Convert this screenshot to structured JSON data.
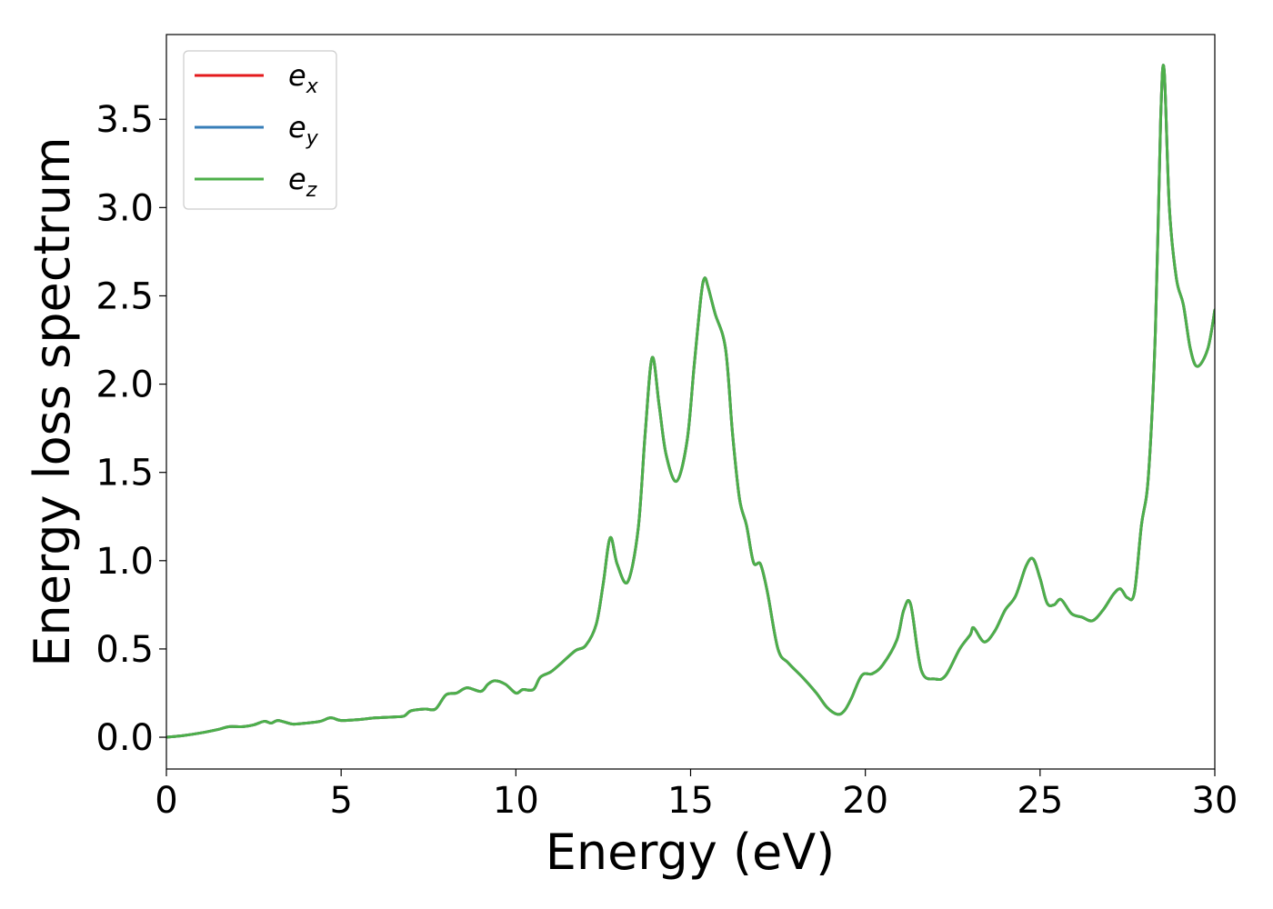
{
  "chart_data": {
    "type": "line",
    "title": "",
    "xlabel": "Energy (eV)",
    "ylabel": "Energy loss spectrum",
    "xlim": [
      0,
      30
    ],
    "ylim": [
      -0.18,
      3.98
    ],
    "xticks": [
      0,
      5,
      10,
      15,
      20,
      25,
      30
    ],
    "xtick_labels": [
      "0",
      "5",
      "10",
      "15",
      "20",
      "25",
      "30"
    ],
    "yticks": [
      0.0,
      0.5,
      1.0,
      1.5,
      2.0,
      2.5,
      3.0,
      3.5
    ],
    "ytick_labels": [
      "0.0",
      "0.5",
      "1.0",
      "1.5",
      "2.0",
      "2.5",
      "3.0",
      "3.5"
    ],
    "grid": false,
    "legend_position": "top-left",
    "x": [
      0.0,
      0.5,
      1.0,
      1.5,
      1.8,
      2.2,
      2.5,
      2.8,
      3.0,
      3.2,
      3.6,
      4.0,
      4.4,
      4.7,
      5.0,
      5.5,
      6.0,
      6.5,
      6.8,
      7.0,
      7.4,
      7.7,
      8.0,
      8.3,
      8.6,
      9.0,
      9.2,
      9.4,
      9.7,
      10.0,
      10.2,
      10.5,
      10.7,
      11.0,
      11.3,
      11.7,
      12.0,
      12.3,
      12.5,
      12.7,
      12.9,
      13.2,
      13.5,
      13.7,
      13.9,
      14.1,
      14.3,
      14.6,
      14.9,
      15.1,
      15.3,
      15.4,
      15.5,
      15.7,
      16.0,
      16.2,
      16.4,
      16.6,
      16.8,
      17.0,
      17.2,
      17.5,
      17.8,
      18.2,
      18.6,
      18.9,
      19.2,
      19.4,
      19.6,
      19.9,
      20.2,
      20.5,
      20.9,
      21.1,
      21.3,
      21.6,
      22.0,
      22.3,
      22.7,
      23.0,
      23.1,
      23.4,
      23.7,
      24.0,
      24.3,
      24.6,
      24.8,
      25.0,
      25.2,
      25.4,
      25.6,
      25.9,
      26.2,
      26.5,
      26.8,
      27.1,
      27.3,
      27.5,
      27.7,
      27.9,
      28.1,
      28.3,
      28.45,
      28.55,
      28.7,
      28.9,
      29.1,
      29.3,
      29.5,
      29.8,
      30.0
    ],
    "series": [
      {
        "name": "e_x",
        "label_base": "e",
        "label_sub": "x",
        "color": "#e41a1c",
        "values": [
          0.0,
          0.01,
          0.025,
          0.045,
          0.06,
          0.06,
          0.07,
          0.09,
          0.08,
          0.095,
          0.075,
          0.08,
          0.09,
          0.11,
          0.095,
          0.1,
          0.11,
          0.115,
          0.12,
          0.15,
          0.16,
          0.16,
          0.24,
          0.25,
          0.28,
          0.26,
          0.3,
          0.32,
          0.3,
          0.25,
          0.27,
          0.27,
          0.34,
          0.37,
          0.42,
          0.49,
          0.52,
          0.64,
          0.87,
          1.13,
          0.98,
          0.88,
          1.18,
          1.72,
          2.15,
          1.88,
          1.6,
          1.45,
          1.68,
          2.1,
          2.5,
          2.6,
          2.55,
          2.4,
          2.2,
          1.72,
          1.35,
          1.2,
          0.99,
          0.98,
          0.82,
          0.5,
          0.42,
          0.34,
          0.25,
          0.17,
          0.13,
          0.15,
          0.22,
          0.35,
          0.36,
          0.41,
          0.55,
          0.72,
          0.75,
          0.38,
          0.33,
          0.35,
          0.5,
          0.58,
          0.62,
          0.54,
          0.6,
          0.72,
          0.8,
          0.97,
          1.01,
          0.9,
          0.76,
          0.75,
          0.78,
          0.7,
          0.68,
          0.66,
          0.72,
          0.81,
          0.84,
          0.79,
          0.82,
          1.2,
          1.48,
          2.3,
          3.5,
          3.78,
          3.0,
          2.6,
          2.45,
          2.2,
          2.1,
          2.2,
          2.42
        ]
      },
      {
        "name": "e_y",
        "label_base": "e",
        "label_sub": "y",
        "color": "#377eb8",
        "values": [
          0.0,
          0.01,
          0.025,
          0.045,
          0.06,
          0.06,
          0.07,
          0.09,
          0.08,
          0.095,
          0.075,
          0.08,
          0.09,
          0.11,
          0.095,
          0.1,
          0.11,
          0.115,
          0.12,
          0.15,
          0.16,
          0.16,
          0.24,
          0.25,
          0.28,
          0.26,
          0.3,
          0.32,
          0.3,
          0.25,
          0.27,
          0.27,
          0.34,
          0.37,
          0.42,
          0.49,
          0.52,
          0.64,
          0.87,
          1.13,
          0.98,
          0.88,
          1.18,
          1.72,
          2.15,
          1.88,
          1.6,
          1.45,
          1.68,
          2.1,
          2.5,
          2.6,
          2.55,
          2.4,
          2.2,
          1.72,
          1.35,
          1.2,
          0.99,
          0.98,
          0.82,
          0.5,
          0.42,
          0.34,
          0.25,
          0.17,
          0.13,
          0.15,
          0.22,
          0.35,
          0.36,
          0.41,
          0.55,
          0.72,
          0.75,
          0.38,
          0.33,
          0.35,
          0.5,
          0.58,
          0.62,
          0.54,
          0.6,
          0.72,
          0.8,
          0.97,
          1.01,
          0.9,
          0.76,
          0.75,
          0.78,
          0.7,
          0.68,
          0.66,
          0.72,
          0.81,
          0.84,
          0.79,
          0.82,
          1.2,
          1.48,
          2.3,
          3.5,
          3.78,
          3.0,
          2.6,
          2.45,
          2.2,
          2.1,
          2.2,
          2.42
        ]
      },
      {
        "name": "e_z",
        "label_base": "e",
        "label_sub": "z",
        "color": "#4daf4a",
        "values": [
          0.0,
          0.01,
          0.025,
          0.045,
          0.06,
          0.06,
          0.07,
          0.09,
          0.08,
          0.095,
          0.075,
          0.08,
          0.09,
          0.11,
          0.095,
          0.1,
          0.11,
          0.115,
          0.12,
          0.15,
          0.16,
          0.16,
          0.24,
          0.25,
          0.28,
          0.26,
          0.3,
          0.32,
          0.3,
          0.25,
          0.27,
          0.27,
          0.34,
          0.37,
          0.42,
          0.49,
          0.52,
          0.64,
          0.87,
          1.13,
          0.98,
          0.88,
          1.18,
          1.72,
          2.15,
          1.88,
          1.6,
          1.45,
          1.68,
          2.1,
          2.5,
          2.6,
          2.55,
          2.4,
          2.2,
          1.72,
          1.35,
          1.2,
          0.99,
          0.98,
          0.82,
          0.5,
          0.42,
          0.34,
          0.25,
          0.17,
          0.13,
          0.15,
          0.22,
          0.35,
          0.36,
          0.41,
          0.55,
          0.72,
          0.75,
          0.38,
          0.33,
          0.35,
          0.5,
          0.58,
          0.62,
          0.54,
          0.6,
          0.72,
          0.8,
          0.97,
          1.01,
          0.9,
          0.76,
          0.75,
          0.78,
          0.7,
          0.68,
          0.66,
          0.72,
          0.81,
          0.84,
          0.79,
          0.82,
          1.2,
          1.48,
          2.3,
          3.5,
          3.78,
          3.0,
          2.6,
          2.45,
          2.2,
          2.1,
          2.2,
          2.42
        ]
      }
    ]
  }
}
